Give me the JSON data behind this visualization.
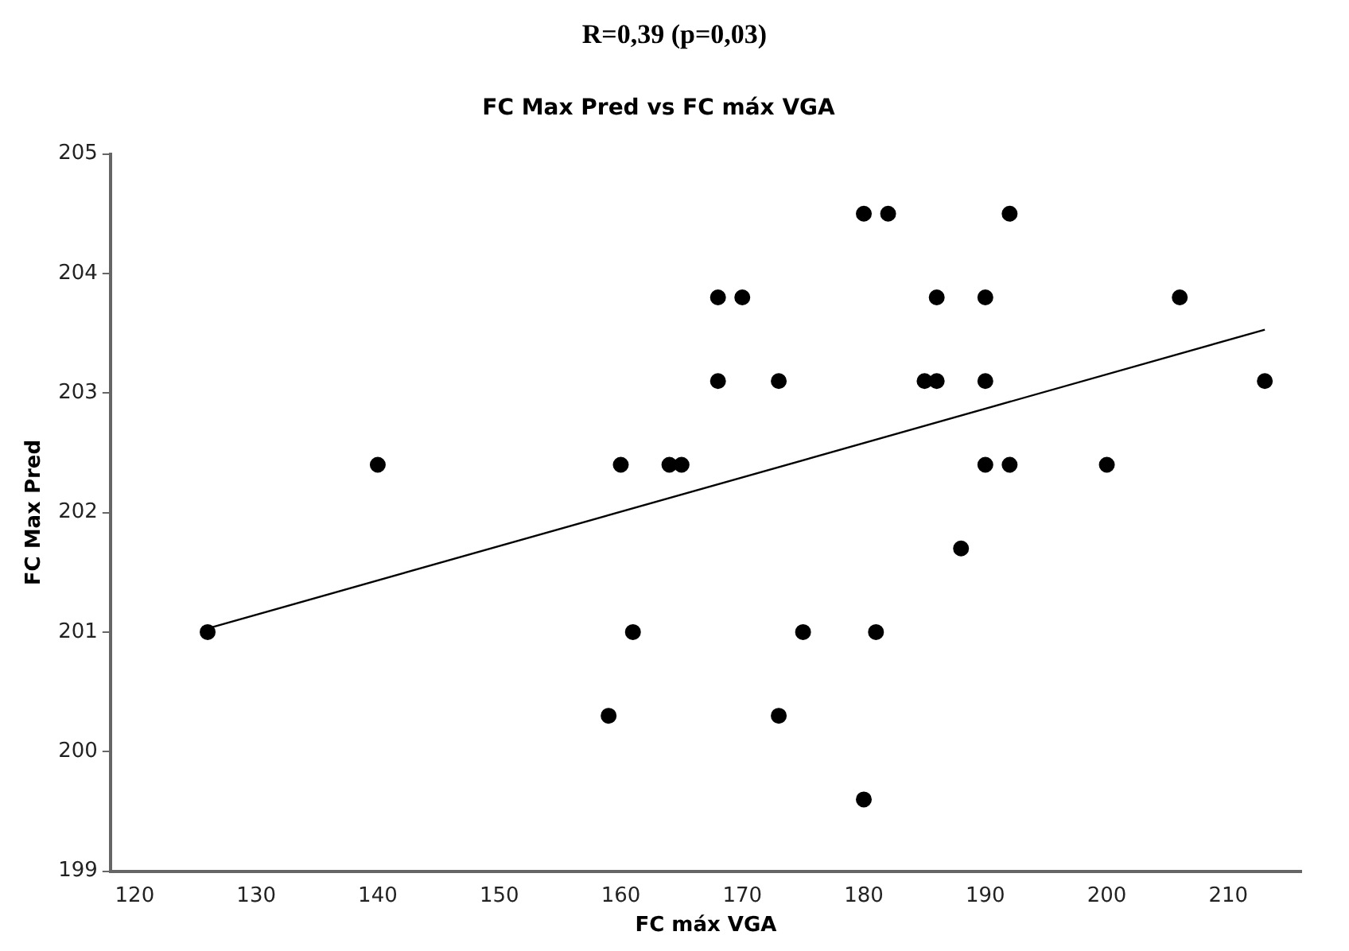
{
  "chart_data": {
    "type": "scatter",
    "title": "FC Max Pred vs FC máx VGA",
    "xlabel": "FC máx VGA",
    "ylabel": "FC Max Pred",
    "annotations": [
      "R=0,39 (p=0,03)"
    ],
    "xlim": [
      118,
      216
    ],
    "xticks": [
      120,
      130,
      140,
      150,
      160,
      170,
      180,
      190,
      200,
      210
    ],
    "ylim": [
      199,
      205
    ],
    "yticks": [
      199,
      200,
      201,
      202,
      203,
      204,
      205
    ],
    "grid": false,
    "legend": false,
    "marker": "circle",
    "series": [
      {
        "color": "#000000",
        "x": [
          180,
          182,
          192,
          168,
          170,
          186,
          190,
          206,
          168,
          173,
          185,
          186,
          190,
          213,
          140,
          160,
          164,
          165,
          190,
          192,
          200,
          188,
          126,
          161,
          175,
          181,
          159,
          173,
          180
        ],
        "values": [
          204.5,
          204.5,
          204.5,
          203.8,
          203.8,
          203.8,
          203.8,
          203.8,
          203.1,
          203.1,
          203.1,
          203.1,
          203.1,
          203.1,
          202.4,
          202.4,
          202.4,
          202.4,
          202.4,
          202.4,
          202.4,
          201.7,
          201,
          201,
          201,
          201,
          200.3,
          200.3,
          199.6
        ]
      },
      {
        "type": "line",
        "color": "#000000",
        "marker": "none",
        "x": [
          126,
          213
        ],
        "values": [
          201.03,
          203.53
        ]
      }
    ]
  }
}
